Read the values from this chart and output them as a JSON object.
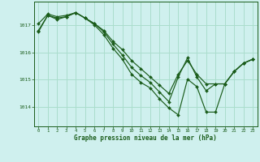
{
  "title": "Graphe pression niveau de la mer (hPa)",
  "background_color": "#cff0ee",
  "grid_color": "#aaddcc",
  "line_color": "#1a5c1a",
  "marker_color": "#1a5c1a",
  "xlim": [
    -0.5,
    23.5
  ],
  "ylim": [
    1013.3,
    1017.85
  ],
  "yticks": [
    1014,
    1015,
    1016,
    1017
  ],
  "xticks": [
    0,
    1,
    2,
    3,
    4,
    5,
    6,
    7,
    8,
    9,
    10,
    11,
    12,
    13,
    14,
    15,
    16,
    17,
    18,
    19,
    20,
    21,
    22,
    23
  ],
  "series": [
    [
      1016.8,
      1017.35,
      1017.25,
      1017.3,
      1017.45,
      1017.25,
      1017.05,
      1016.75,
      1016.3,
      1015.9,
      1015.45,
      1015.15,
      1014.9,
      1014.55,
      1014.2,
      1015.1,
      1015.8,
      1015.1,
      1014.6,
      1014.85,
      1014.85,
      1015.3,
      1015.6,
      1015.75
    ],
    [
      1017.05,
      1017.4,
      1017.3,
      1017.35,
      1017.45,
      1017.25,
      1017.05,
      1016.8,
      1016.4,
      1016.1,
      1015.7,
      1015.4,
      1015.1,
      1014.8,
      1014.5,
      1015.2,
      1015.7,
      1015.2,
      1014.85,
      1014.85,
      1014.85,
      1015.3,
      1015.6,
      1015.75
    ],
    [
      1016.75,
      1017.35,
      1017.2,
      1017.3,
      1017.45,
      1017.25,
      1017.0,
      1016.65,
      1016.15,
      1015.75,
      1015.2,
      1014.9,
      1014.7,
      1014.3,
      1013.97,
      1013.72,
      1015.02,
      1014.75,
      1013.82,
      1013.82,
      1014.85,
      1015.3,
      1015.6,
      1015.75
    ]
  ]
}
